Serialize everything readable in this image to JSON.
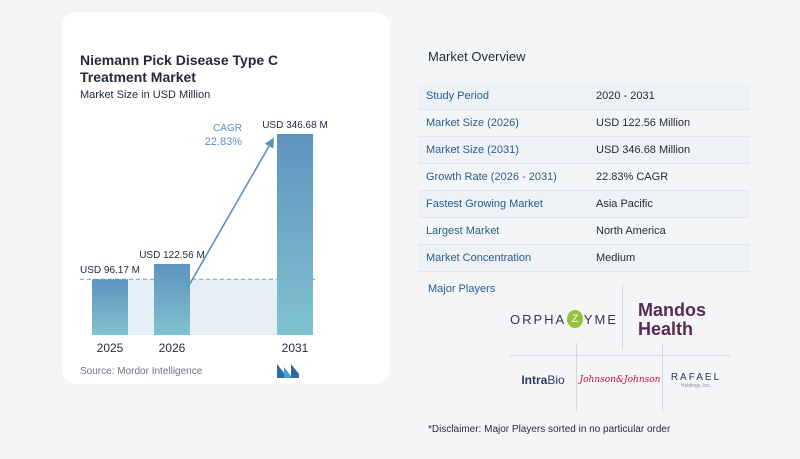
{
  "chart_data": {
    "type": "bar",
    "title": "Niemann Pick Disease Type C Treatment Market",
    "subtitle": "Market Size in USD Million",
    "categories": [
      "2025",
      "2026",
      "2031"
    ],
    "values": [
      96.17,
      122.56,
      346.68
    ],
    "value_labels": [
      "USD 96.17 M",
      "USD 122.56 M",
      "USD 346.68 M"
    ],
    "cagr_label": "CAGR",
    "cagr_value": "22.83%",
    "ylim": [
      0,
      346.68
    ],
    "grid": false,
    "colors": {
      "bar_top": "#5e93bf",
      "bar_bottom": "#80c2d0",
      "band": "#e6eef5",
      "arrow": "#5b8fbf",
      "dashed": "#6f9fc8"
    }
  },
  "source": "Source:  Mordor Intelligence",
  "overview": {
    "title": "Market Overview",
    "rows": [
      {
        "label": "Study Period",
        "value": "2020 - 2031"
      },
      {
        "label": "Market Size (2026)",
        "value": "USD 122.56 Million"
      },
      {
        "label": "Market Size (2031)",
        "value": "USD 346.68 Million"
      },
      {
        "label": "Growth Rate (2026 - 2031)",
        "value": "22.83% CAGR"
      },
      {
        "label": "Fastest Growing Market",
        "value": "Asia Pacific"
      },
      {
        "label": "Largest Market",
        "value": "North America"
      },
      {
        "label": "Market Concentration",
        "value": "Medium"
      }
    ]
  },
  "players": {
    "title": "Major Players",
    "orphazyme": {
      "pre": "ORPHA",
      "z": "Z",
      "post": "YME"
    },
    "mandos": {
      "line1": "Mandos",
      "line2": "Health"
    },
    "intrabio": {
      "a": "Intra",
      "b": "Bio"
    },
    "jnj": "Johnson&Johnson",
    "rafael": {
      "name": "RAFAEL",
      "sub": "Holdings, Inc."
    }
  },
  "disclaimer": "*Disclaimer: Major Players sorted in no particular order"
}
